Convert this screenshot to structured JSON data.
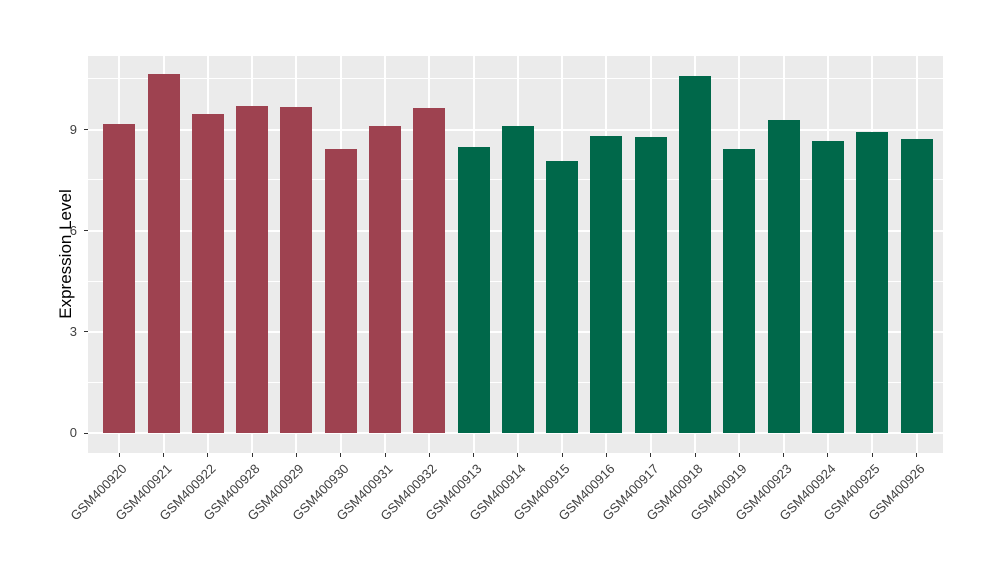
{
  "figure": {
    "background_color": "#FFFFFF",
    "axis_text_color": "#404040",
    "axis_title_color": "#000000",
    "tick_mark_color": "#333333"
  },
  "chart_data": {
    "type": "bar",
    "title": "",
    "xlabel": "",
    "ylabel": "Expression Level",
    "ylim": [
      -0.6,
      11.2
    ],
    "yticks": [
      0,
      3,
      6,
      9
    ],
    "minor_gridlines": [
      1.5,
      4.5,
      7.5,
      10.5
    ],
    "grid": true,
    "legend_position": "none",
    "panel_background": "#EBEBEB",
    "gridline_color": "#FFFFFF",
    "x_tick_rotation_deg": 45,
    "categories": [
      "GSM400920",
      "GSM400921",
      "GSM400922",
      "GSM400928",
      "GSM400929",
      "GSM400930",
      "GSM400931",
      "GSM400932",
      "GSM400913",
      "GSM400914",
      "GSM400915",
      "GSM400916",
      "GSM400917",
      "GSM400918",
      "GSM400919",
      "GSM400923",
      "GSM400924",
      "GSM400925",
      "GSM400926"
    ],
    "values": [
      9.18,
      10.66,
      9.47,
      9.7,
      9.69,
      8.43,
      9.11,
      9.66,
      8.5,
      9.13,
      8.08,
      8.82,
      8.8,
      10.6,
      8.45,
      9.3,
      8.66,
      8.95,
      8.72
    ],
    "bar_groups": [
      "A",
      "A",
      "A",
      "A",
      "A",
      "A",
      "A",
      "A",
      "B",
      "B",
      "B",
      "B",
      "B",
      "B",
      "B",
      "B",
      "B",
      "B",
      "B"
    ],
    "group_colors": {
      "A": "#9E4250",
      "B": "#00684A"
    }
  }
}
